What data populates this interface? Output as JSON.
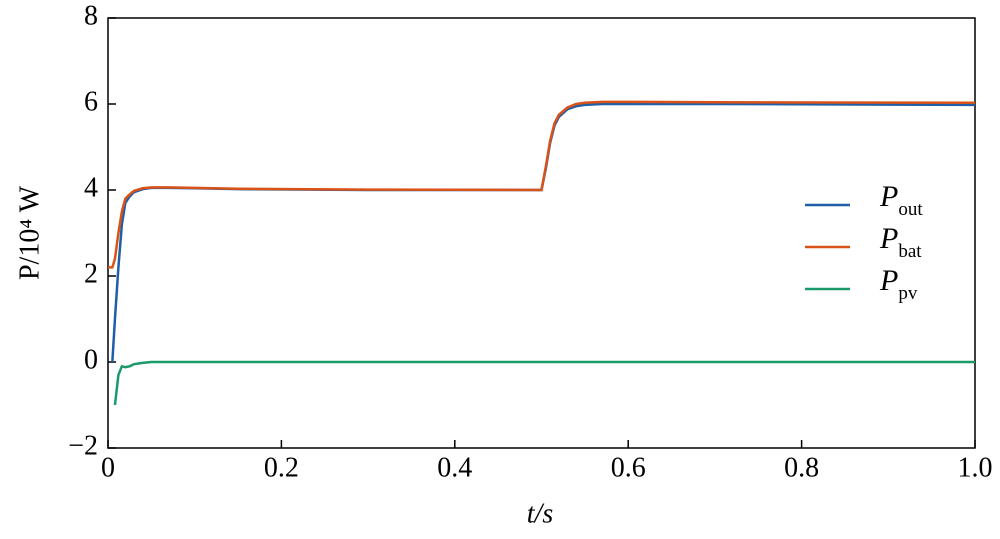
{
  "chart_data": {
    "type": "line",
    "xlabel": "t/s",
    "ylabel": "P/10⁴ W",
    "x": [
      0,
      0.005,
      0.008,
      0.012,
      0.016,
      0.02,
      0.025,
      0.03,
      0.04,
      0.05,
      0.07,
      0.1,
      0.15,
      0.3,
      0.5,
      0.505,
      0.51,
      0.515,
      0.52,
      0.53,
      0.54,
      0.55,
      0.57,
      0.6,
      0.7,
      1.0
    ],
    "series": [
      {
        "name": "Pout",
        "color": "#1f5fa8",
        "values": [
          null,
          0,
          1.0,
          2.2,
          3.2,
          3.7,
          3.85,
          3.95,
          4.02,
          4.05,
          4.05,
          4.04,
          4.02,
          4.0,
          4.0,
          4.5,
          5.1,
          5.5,
          5.7,
          5.88,
          5.95,
          5.98,
          6.0,
          6.0,
          6.0,
          5.98
        ]
      },
      {
        "name": "Pbat",
        "color": "#d95319",
        "values": [
          2.2,
          2.2,
          2.4,
          3.0,
          3.5,
          3.8,
          3.9,
          3.98,
          4.04,
          4.06,
          4.06,
          4.05,
          4.03,
          4.01,
          4.0,
          4.55,
          5.15,
          5.55,
          5.75,
          5.92,
          6.0,
          6.03,
          6.05,
          6.05,
          6.04,
          6.03
        ]
      },
      {
        "name": "Ppv",
        "color": "#1a9a6a",
        "values": [
          null,
          null,
          -1.0,
          -0.3,
          -0.1,
          -0.12,
          -0.1,
          -0.05,
          -0.02,
          0,
          0,
          0,
          0,
          0,
          0,
          0,
          0,
          0,
          0,
          0,
          0,
          0,
          0,
          0,
          0,
          0
        ]
      }
    ],
    "xlim": [
      0,
      1
    ],
    "xticks": [
      0,
      0.2,
      0.4,
      0.6,
      0.8,
      {
        "value": 1,
        "label": "1.0"
      }
    ],
    "ylim": [
      -2,
      8
    ],
    "yticks": [
      {
        "value": -2,
        "label": "−2"
      },
      0,
      2,
      4,
      6,
      8
    ],
    "legend": "right"
  }
}
